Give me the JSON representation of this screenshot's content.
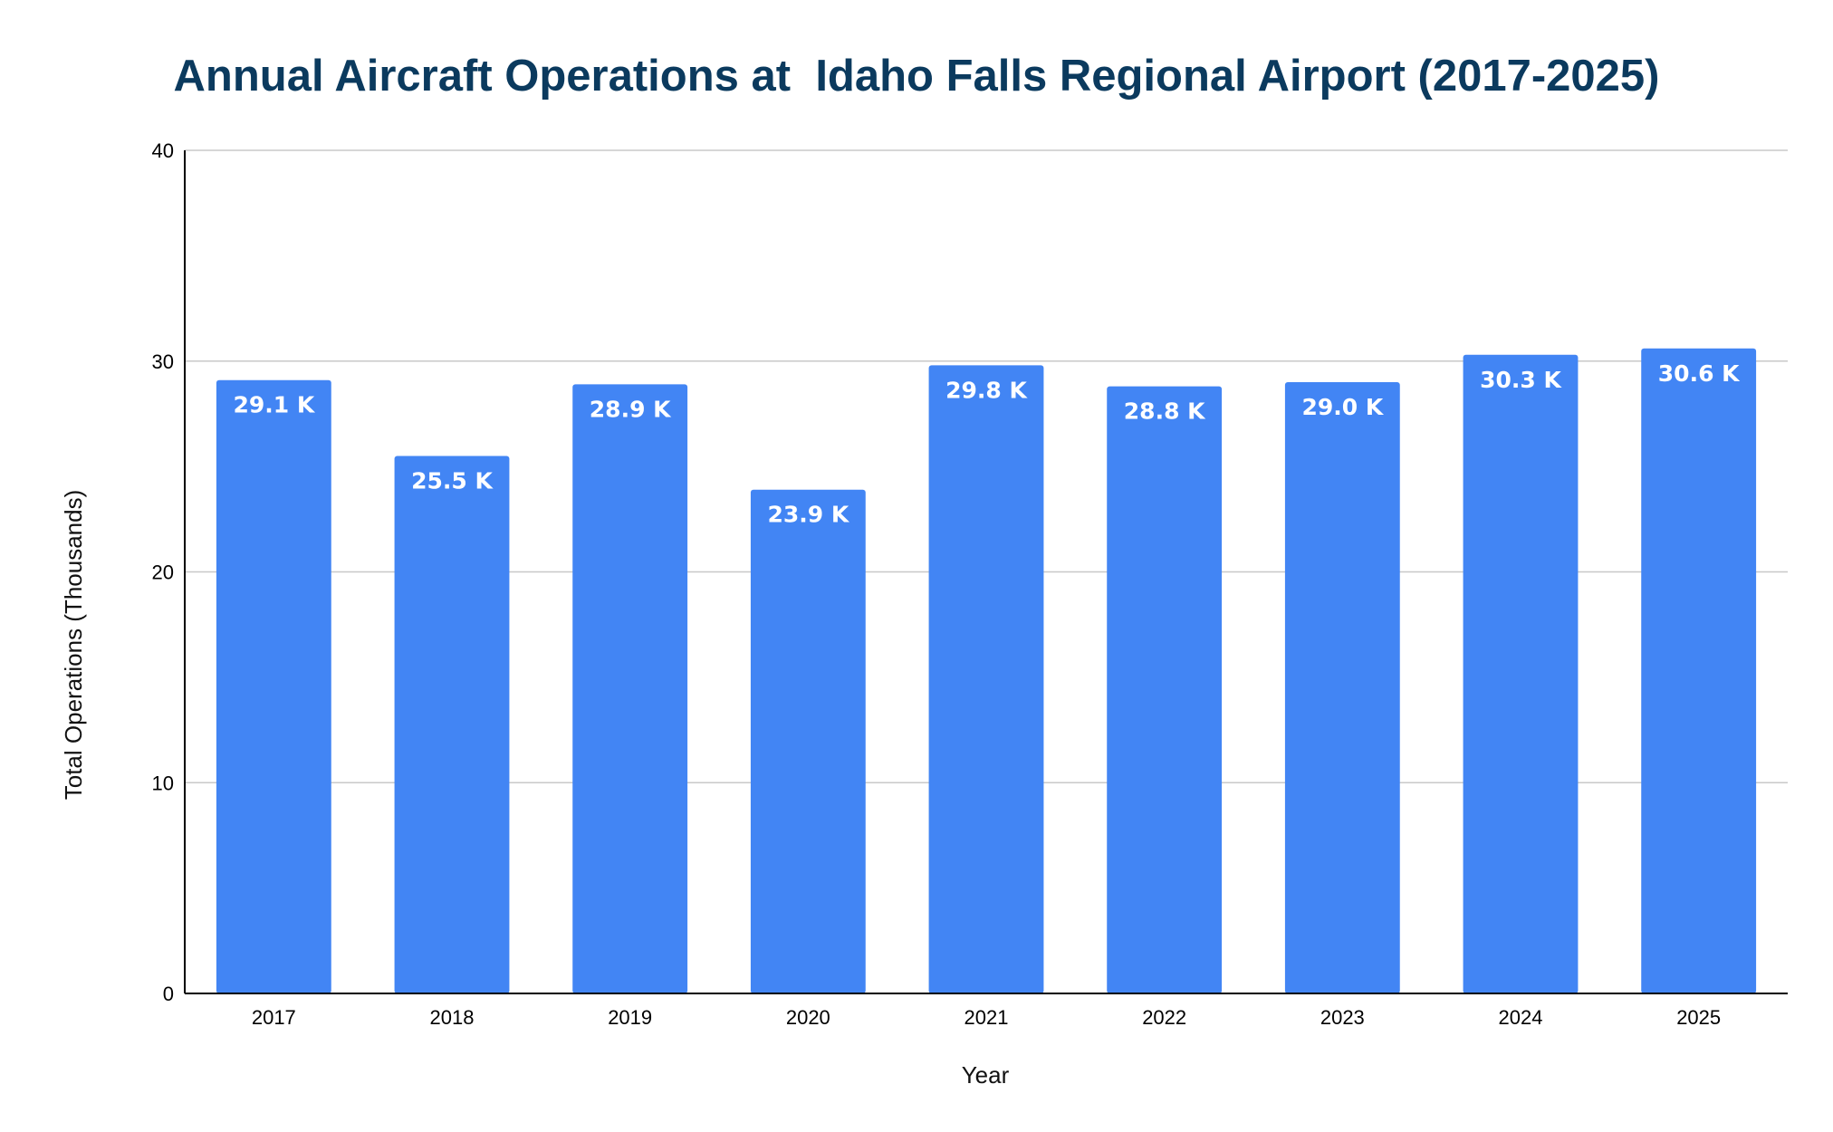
{
  "colors": {
    "bar": "#4285f4",
    "title": "#0b3a5e",
    "grid": "#c8c8c8",
    "axis": "#000000",
    "data_label": "#ffffff"
  },
  "chart_data": {
    "type": "bar",
    "title": "Annual Aircraft Operations at  Idaho Falls Regional Airport (2017-2025)",
    "xlabel": "Year",
    "ylabel": "Total Operations (Thousands)",
    "categories": [
      "2017",
      "2018",
      "2019",
      "2020",
      "2021",
      "2022",
      "2023",
      "2024",
      "2025"
    ],
    "values": [
      29.1,
      25.5,
      28.9,
      23.9,
      29.8,
      28.8,
      29.0,
      30.3,
      30.6
    ],
    "data_labels": [
      "29.1 K",
      "25.5 K",
      "28.9 K",
      "23.9 K",
      "29.8 K",
      "28.8 K",
      "29.0 K",
      "30.3 K",
      "30.6 K"
    ],
    "ylim": [
      0,
      40
    ],
    "yticks": [
      "0",
      "10",
      "20",
      "30",
      "40"
    ],
    "grid": true,
    "legend": "none"
  }
}
